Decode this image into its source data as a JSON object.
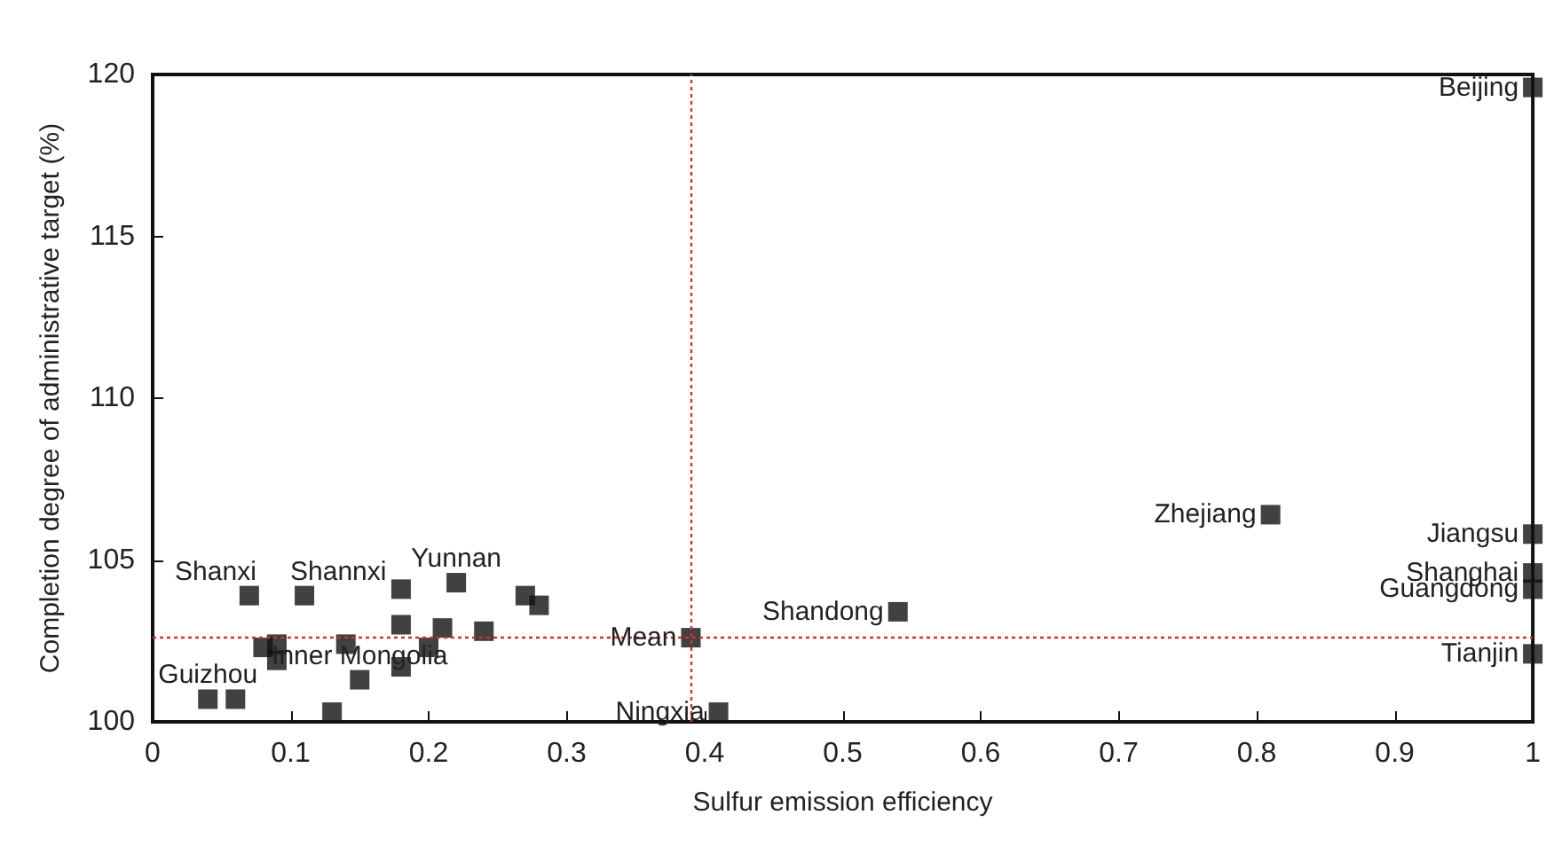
{
  "chart_data": {
    "type": "scatter",
    "xlabel": "Sulfur emission efficiency",
    "ylabel": "Completion degree of administrative target (%)",
    "xlim": [
      0,
      1
    ],
    "xticks": [
      0,
      0.1,
      0.2,
      0.3,
      0.4,
      0.5,
      0.6,
      0.7,
      0.8,
      0.9,
      1
    ],
    "ylim": [
      100,
      120
    ],
    "yticks": [
      100,
      105,
      110,
      115,
      120
    ],
    "grid": false,
    "marker": "square",
    "series": [
      {
        "color": "#111111",
        "x": [
          0.07,
          0.11,
          0.18,
          0.22,
          0.27,
          0.28,
          0.18,
          0.21,
          0.24,
          0.2,
          0.18,
          0.14,
          0.08,
          0.09,
          0.09,
          0.15,
          0.04,
          0.06,
          0.13,
          0.39,
          0.41,
          0.54,
          0.81,
          1,
          1,
          1,
          1,
          1
        ],
        "values": [
          103.9,
          103.9,
          104.1,
          104.3,
          103.9,
          103.6,
          103.0,
          102.9,
          102.8,
          102.3,
          101.7,
          102.4,
          102.3,
          102.4,
          101.9,
          101.3,
          100.7,
          100.7,
          100.3,
          102.6,
          100.3,
          103.4,
          106.4,
          119.6,
          105.8,
          104.6,
          104.1,
          102.1
        ]
      }
    ],
    "ref_lines": [
      {
        "axis": "x",
        "value": 0.39,
        "color": "#cc3333",
        "line_style": "dotted"
      },
      {
        "axis": "y",
        "value": 102.6,
        "color": "#cc3333",
        "line_style": "dotted"
      }
    ],
    "annotations": [
      {
        "text": "Shanxi",
        "x": 0.07,
        "y": 103.9
      },
      {
        "text": "Shannxi",
        "x": 0.11,
        "y": 103.9
      },
      {
        "text": "Yunnan",
        "x": 0.22,
        "y": 104.3
      },
      {
        "text": "Inner Mongolia",
        "x": 0.15,
        "y": 101.3
      },
      {
        "text": "Guizhou",
        "x": 0.04,
        "y": 100.7
      },
      {
        "text": "Mean",
        "x": 0.39,
        "y": 102.6
      },
      {
        "text": "Ningxia",
        "x": 0.41,
        "y": 100.3
      },
      {
        "text": "Shandong",
        "x": 0.54,
        "y": 103.4
      },
      {
        "text": "Zhejiang",
        "x": 0.81,
        "y": 106.4
      },
      {
        "text": "Beijing",
        "x": 1,
        "y": 119.6
      },
      {
        "text": "Jiangsu",
        "x": 1,
        "y": 105.8
      },
      {
        "text": "Shanghai",
        "x": 1,
        "y": 104.6
      },
      {
        "text": "Guangdong",
        "x": 1,
        "y": 104.1
      },
      {
        "text": "Tianjin",
        "x": 1,
        "y": 102.1
      }
    ]
  }
}
